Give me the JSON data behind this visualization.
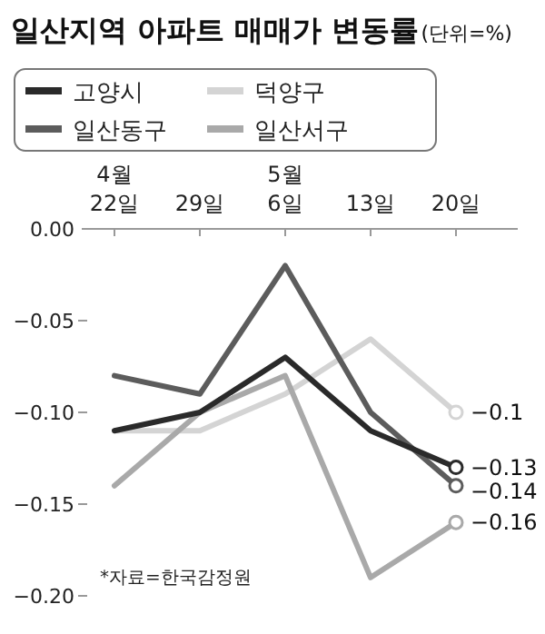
{
  "chart_data": {
    "type": "line",
    "title": "일산지역 아파트 매매가 변동률",
    "subtitle": "(단위=%)",
    "categories": [
      "4월\n22일",
      "29일",
      "5월\n6일",
      "13일",
      "20일"
    ],
    "series": [
      {
        "name": "고양시",
        "color": "#2a2a2a",
        "values": [
          -0.11,
          -0.1,
          -0.07,
          -0.11,
          -0.13
        ],
        "value_labels": [
          null,
          null,
          null,
          null,
          "−0.13"
        ]
      },
      {
        "name": "일산동구",
        "color": "#5c5c5c",
        "values": [
          -0.08,
          -0.09,
          -0.02,
          -0.1,
          -0.14
        ],
        "value_labels": [
          null,
          null,
          null,
          null,
          "−0.14"
        ]
      },
      {
        "name": "덕양구",
        "color": "#d4d4d4",
        "values": [
          -0.11,
          -0.11,
          -0.09,
          -0.06,
          -0.1
        ],
        "value_labels": [
          null,
          null,
          null,
          null,
          "−0.1"
        ]
      },
      {
        "name": "일산서구",
        "color": "#a9a9a9",
        "values": [
          -0.14,
          -0.1,
          -0.08,
          -0.19,
          -0.16
        ],
        "value_labels": [
          null,
          null,
          null,
          null,
          "−0.16"
        ]
      }
    ],
    "ylim": [
      -0.2,
      0
    ],
    "yticks": [
      {
        "value": 0,
        "label": "0.00"
      },
      {
        "value": -0.05,
        "label": "−0.05"
      },
      {
        "value": -0.1,
        "label": "−0.10"
      },
      {
        "value": -0.15,
        "label": "−0.15"
      },
      {
        "value": -0.2,
        "label": "−0.20"
      }
    ],
    "legend": "top",
    "annotations": [
      "*자료=한국감정원"
    ]
  }
}
